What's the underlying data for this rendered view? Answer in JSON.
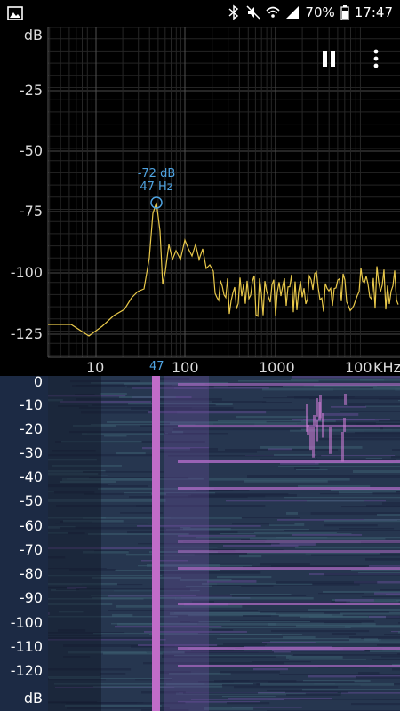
{
  "status_bar": {
    "battery": "70%",
    "time": "17:47",
    "icons": [
      "image-icon",
      "bluetooth-icon",
      "mute-icon",
      "wifi-icon",
      "signal-icon",
      "battery-icon"
    ]
  },
  "spectrum": {
    "y_unit": "dB",
    "y_ticks": [
      "-25",
      "-50",
      "-75",
      "-100",
      "-125"
    ],
    "x_ticks": [
      "10",
      "100",
      "1000",
      "100",
      "KHz"
    ],
    "peak": {
      "db": "-72 dB",
      "freq": "47 Hz",
      "x_marker": "47"
    },
    "controls": {
      "pause": "pause-icon",
      "menu": "more-vert-icon"
    }
  },
  "spectrogram": {
    "scale_ticks": [
      "0",
      "-10",
      "-20",
      "-30",
      "-40",
      "-50",
      "-60",
      "-70",
      "-80",
      "-90",
      "-100",
      "-110",
      "-120"
    ],
    "unit": "dB",
    "colors": {
      "low": "#1f2c4a",
      "mid": "#3a5c7a",
      "high": "#c06cc8"
    }
  },
  "colors": {
    "trace": "#e8c84a",
    "peak": "#4fa3e0",
    "grid": "#3a3a3a"
  }
}
